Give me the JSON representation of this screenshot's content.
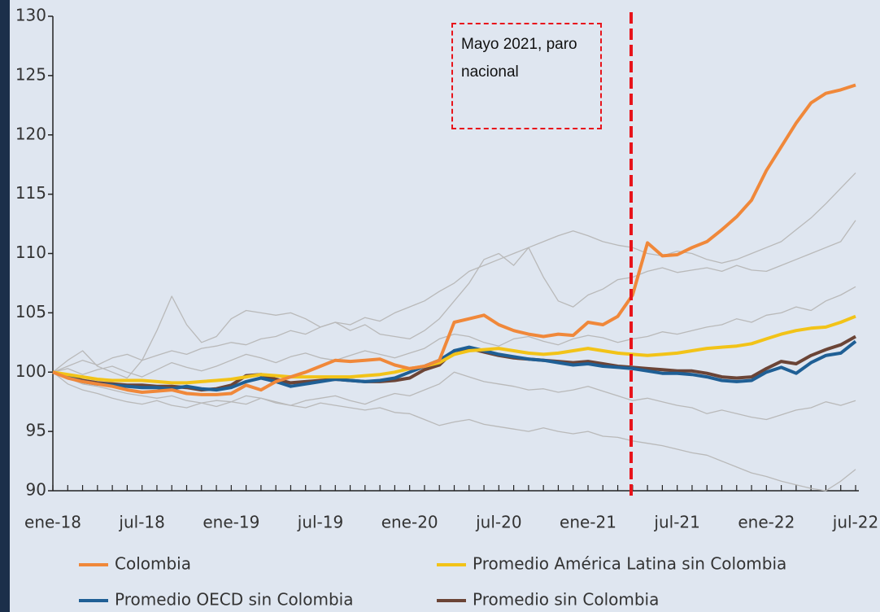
{
  "chart_data": {
    "type": "line",
    "categories": [
      "ene-18",
      null,
      null,
      null,
      null,
      null,
      "jul-18",
      null,
      null,
      null,
      null,
      null,
      "ene-19",
      null,
      null,
      null,
      null,
      null,
      "jul-19",
      null,
      null,
      null,
      null,
      null,
      "ene-20",
      null,
      null,
      null,
      null,
      null,
      "jul-20",
      null,
      null,
      null,
      null,
      null,
      "ene-21",
      null,
      null,
      null,
      null,
      null,
      "jul-21",
      null,
      null,
      null,
      null,
      null,
      "ene-22",
      null,
      null,
      null,
      null,
      null,
      "jul-22"
    ],
    "ylim": [
      90,
      130
    ],
    "yticks": [
      90,
      95,
      100,
      105,
      110,
      115,
      120,
      125,
      130
    ],
    "annotation": {
      "text": "Mayo 2021, paro nacional",
      "x": 38.9,
      "color": "#e8141b"
    },
    "series": [
      {
        "name": "Colombia",
        "color": "#f0883a",
        "values": [
          100,
          99.5,
          99.2,
          99,
          98.8,
          98.5,
          98.3,
          98.4,
          98.5,
          98.2,
          98.1,
          98.1,
          98.2,
          98.9,
          98.5,
          99.2,
          99.6,
          100,
          100.5,
          101,
          100.9,
          101,
          101.1,
          100.6,
          100.3,
          100.5,
          101,
          104.2,
          104.5,
          104.8,
          104,
          103.5,
          103.2,
          103,
          103.2,
          103.1,
          104.2,
          104,
          104.7,
          106.5,
          110.9,
          109.8,
          109.9,
          110.5,
          111,
          112,
          113.1,
          114.5,
          117,
          119,
          121,
          122.7,
          123.5,
          123.8,
          124.2
        ]
      },
      {
        "name": "Promedio América Latina sin Colombia",
        "color": "#f2c318",
        "values": [
          100,
          99.8,
          99.6,
          99.4,
          99.3,
          99.3,
          99.3,
          99.2,
          99.1,
          99.1,
          99.2,
          99.3,
          99.4,
          99.6,
          99.8,
          99.7,
          99.6,
          99.6,
          99.6,
          99.6,
          99.6,
          99.7,
          99.8,
          100,
          100.3,
          100.5,
          100.8,
          101.5,
          101.8,
          101.9,
          102,
          101.8,
          101.6,
          101.5,
          101.6,
          101.8,
          102,
          101.8,
          101.6,
          101.5,
          101.4,
          101.5,
          101.6,
          101.8,
          102,
          102.1,
          102.2,
          102.4,
          102.8,
          103.2,
          103.5,
          103.7,
          103.8,
          104.2,
          104.7
        ]
      },
      {
        "name": "Promedio OECD sin Colombia",
        "color": "#1f5f95",
        "values": [
          100,
          99.6,
          99.2,
          99,
          98.9,
          98.8,
          98.7,
          98.7,
          98.6,
          98.8,
          98.6,
          98.5,
          98.7,
          99.2,
          99.5,
          99.2,
          98.8,
          99,
          99.2,
          99.4,
          99.3,
          99.2,
          99.3,
          99.5,
          100,
          100.5,
          101,
          101.8,
          102.1,
          101.8,
          101.5,
          101.3,
          101.1,
          101,
          100.8,
          100.6,
          100.7,
          100.5,
          100.4,
          100.3,
          100.1,
          99.9,
          99.9,
          99.8,
          99.6,
          99.3,
          99.2,
          99.3,
          100,
          100.4,
          99.9,
          100.8,
          101.4,
          101.6,
          102.6
        ]
      },
      {
        "name": "Promedio sin Colombia",
        "color": "#6b4436",
        "values": [
          100,
          99.7,
          99.3,
          99.1,
          99,
          98.9,
          98.9,
          98.8,
          98.8,
          98.7,
          98.5,
          98.6,
          98.9,
          99.7,
          99.8,
          99.4,
          99.1,
          99.2,
          99.3,
          99.4,
          99.3,
          99.2,
          99.2,
          99.3,
          99.5,
          100.2,
          100.6,
          101.8,
          102,
          101.7,
          101.4,
          101.2,
          101.1,
          101,
          100.9,
          100.8,
          100.9,
          100.7,
          100.5,
          100.4,
          100.3,
          100.2,
          100.1,
          100.1,
          99.9,
          99.6,
          99.5,
          99.6,
          100.3,
          100.9,
          100.7,
          101.4,
          101.9,
          102.3,
          103
        ]
      }
    ],
    "background_series": [
      {
        "color": "#b9b9b9",
        "values": [
          100,
          100.5,
          101,
          100.6,
          101.2,
          101.5,
          101,
          101.4,
          101.8,
          101.5,
          102,
          102.2,
          102.5,
          102.3,
          102.8,
          103,
          103.5,
          103.2,
          103.8,
          104.2,
          104,
          104.6,
          104.3,
          105,
          105.5,
          106,
          106.8,
          107.5,
          108.5,
          109,
          109.5,
          110,
          110.5,
          111,
          111.5,
          111.9,
          111.5,
          111,
          110.7,
          110.5,
          110,
          109.8,
          110.2,
          110,
          109.5,
          109.2,
          109.5,
          110,
          110.5,
          111,
          112,
          113,
          114.2,
          115.5,
          116.8
        ]
      },
      {
        "color": "#b9b9b9",
        "values": [
          100,
          99.5,
          99,
          98.8,
          98.5,
          98.2,
          98,
          97.8,
          98,
          97.6,
          97.4,
          97.6,
          97.5,
          97.3,
          97.8,
          97.5,
          97.2,
          97,
          97.4,
          97.2,
          97,
          96.8,
          97,
          96.6,
          96.5,
          96,
          95.5,
          95.8,
          96,
          95.6,
          95.4,
          95.2,
          95,
          95.3,
          95,
          94.8,
          95,
          94.6,
          94.5,
          94.2,
          94,
          93.8,
          93.5,
          93.2,
          93,
          92.5,
          92,
          91.5,
          91.2,
          90.8,
          90.5,
          90.2,
          90,
          90.8,
          91.8
        ]
      },
      {
        "color": "#b9b9b9",
        "values": [
          100,
          101,
          101.8,
          100.5,
          100,
          99.5,
          101,
          103.5,
          106.4,
          104,
          102.5,
          103,
          104.5,
          105.2,
          105,
          104.8,
          105,
          104.5,
          103.8,
          104.2,
          103.5,
          104,
          103.2,
          103,
          102.8,
          103.5,
          104.5,
          106,
          107.5,
          109.5,
          110,
          109,
          110.5,
          108,
          106,
          105.5,
          106.5,
          107,
          107.8,
          108,
          108.5,
          108.8,
          108.4,
          108.6,
          108.8,
          108.5,
          109,
          108.6,
          108.5,
          109,
          109.5,
          110,
          110.5,
          111,
          112.8
        ]
      },
      {
        "color": "#b9b9b9",
        "values": [
          100,
          100.3,
          99.8,
          100.2,
          100.5,
          100,
          99.6,
          100.2,
          100.8,
          100.4,
          100.1,
          100.5,
          101,
          101.5,
          101.2,
          100.8,
          101.3,
          101.6,
          101.2,
          101,
          101.4,
          101.8,
          101.5,
          101.2,
          101.6,
          102,
          102.8,
          103.2,
          103,
          102.5,
          102.2,
          102.8,
          103,
          102.6,
          102.3,
          102.8,
          103.1,
          102.9,
          102.5,
          102.8,
          103,
          103.4,
          103.2,
          103.5,
          103.8,
          104,
          104.5,
          104.2,
          104.8,
          105,
          105.5,
          105.2,
          106,
          106.5,
          107.2
        ]
      },
      {
        "color": "#b9b9b9",
        "values": [
          100,
          99,
          98.5,
          98.2,
          97.8,
          97.5,
          97.3,
          97.6,
          97.2,
          97,
          97.4,
          97.1,
          97.5,
          98,
          97.8,
          97.4,
          97.2,
          97.6,
          97.8,
          98,
          97.6,
          97.3,
          97.8,
          98.2,
          98,
          98.5,
          99,
          100,
          99.6,
          99.2,
          99,
          98.8,
          98.5,
          98.6,
          98.3,
          98.5,
          98.8,
          98.4,
          98,
          97.6,
          97.8,
          97.5,
          97.2,
          97,
          96.5,
          96.8,
          96.5,
          96.2,
          96,
          96.4,
          96.8,
          97,
          97.5,
          97.2,
          97.6
        ]
      }
    ]
  }
}
